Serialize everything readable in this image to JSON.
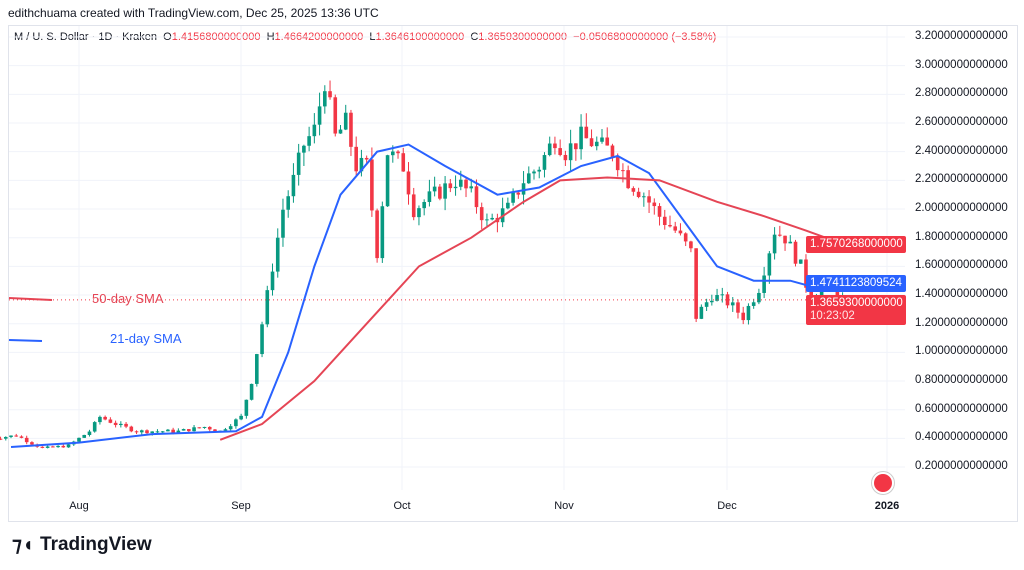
{
  "header": {
    "credit": "edithchuama created with TradingView.com, Dec 25, 2025 13:36 UTC"
  },
  "symbol": {
    "name": "M / U. S. Dollar · 1D · Kraken",
    "o_label": "O",
    "o": "1.4156800000000",
    "h_label": "H",
    "h": "1.4664200000000",
    "l_label": "L",
    "l": "1.3646100000000",
    "c_label": "C",
    "c": "1.3659300000000",
    "change": "−0.0506800000000 (−3.58%)"
  },
  "legend": {
    "sma50": "50-day SMA",
    "sma21": "21-day SMA"
  },
  "price_axis": [
    "3.2000000000000",
    "3.0000000000000",
    "2.8000000000000",
    "2.6000000000000",
    "2.4000000000000",
    "2.2000000000000",
    "2.0000000000000",
    "1.8000000000000",
    "1.6000000000000",
    "1.4000000000000",
    "1.2000000000000",
    "1.0000000000000",
    "0.8000000000000",
    "0.6000000000000",
    "0.4000000000000",
    "0.2000000000000"
  ],
  "tags": {
    "sma50": "1.7570268000000",
    "sma21": "1.4741123809524",
    "last": "1.3659300000000",
    "countdown": "10:23:02"
  },
  "time_axis": [
    "Aug",
    "Sep",
    "Oct",
    "Nov",
    "Dec",
    "2026"
  ],
  "brand": "TradingView",
  "colors": {
    "up": "#089981",
    "down": "#f23645",
    "sma21": "#2962ff",
    "sma50": "#e54555"
  },
  "chart_data": {
    "type": "candlestick",
    "ylim": [
      0.2,
      3.2
    ],
    "x_range": [
      "2025-07-15",
      "2026-01-05"
    ],
    "close_keypoints": [
      [
        "2025-07-15",
        0.4
      ],
      [
        "2025-07-20",
        0.42
      ],
      [
        "2025-07-25",
        0.33
      ],
      [
        "2025-07-30",
        0.35
      ],
      [
        "2025-08-03",
        0.45
      ],
      [
        "2025-08-05",
        0.55
      ],
      [
        "2025-08-08",
        0.5
      ],
      [
        "2025-08-12",
        0.45
      ],
      [
        "2025-08-20",
        0.45
      ],
      [
        "2025-08-25",
        0.48
      ],
      [
        "2025-08-28",
        0.45
      ],
      [
        "2025-09-01",
        0.55
      ],
      [
        "2025-09-03",
        0.8
      ],
      [
        "2025-09-05",
        1.2
      ],
      [
        "2025-09-07",
        1.6
      ],
      [
        "2025-09-09",
        2.0
      ],
      [
        "2025-09-11",
        2.2
      ],
      [
        "2025-09-13",
        2.45
      ],
      [
        "2025-09-15",
        2.55
      ],
      [
        "2025-09-17",
        2.9
      ],
      [
        "2025-09-19",
        2.5
      ],
      [
        "2025-09-21",
        2.6
      ],
      [
        "2025-09-23",
        2.3
      ],
      [
        "2025-09-25",
        2.3
      ],
      [
        "2025-09-27",
        1.7
      ],
      [
        "2025-09-29",
        2.4
      ],
      [
        "2025-10-02",
        2.3
      ],
      [
        "2025-10-04",
        2.0
      ],
      [
        "2025-10-08",
        2.1
      ],
      [
        "2025-10-12",
        2.2
      ],
      [
        "2025-10-15",
        2.1
      ],
      [
        "2025-10-18",
        1.9
      ],
      [
        "2025-10-22",
        2.0
      ],
      [
        "2025-10-25",
        2.2
      ],
      [
        "2025-10-28",
        2.3
      ],
      [
        "2025-10-31",
        2.5
      ],
      [
        "2025-11-02",
        2.4
      ],
      [
        "2025-11-05",
        2.5
      ],
      [
        "2025-11-08",
        2.45
      ],
      [
        "2025-11-11",
        2.4
      ],
      [
        "2025-11-14",
        2.2
      ],
      [
        "2025-11-17",
        2.1
      ],
      [
        "2025-11-20",
        1.95
      ],
      [
        "2025-11-23",
        1.85
      ],
      [
        "2025-11-26",
        1.7
      ],
      [
        "2025-11-27",
        1.25
      ],
      [
        "2025-11-30",
        1.4
      ],
      [
        "2025-12-03",
        1.35
      ],
      [
        "2025-12-06",
        1.25
      ],
      [
        "2025-12-09",
        1.45
      ],
      [
        "2025-12-12",
        1.85
      ],
      [
        "2025-12-14",
        1.8
      ],
      [
        "2025-12-17",
        1.6
      ],
      [
        "2025-12-19",
        1.35
      ],
      [
        "2025-12-21",
        1.48
      ],
      [
        "2025-12-25",
        1.366
      ]
    ],
    "sma21": [
      [
        "2025-07-19",
        0.34
      ],
      [
        "2025-08-01",
        0.37
      ],
      [
        "2025-08-15",
        0.43
      ],
      [
        "2025-08-31",
        0.45
      ],
      [
        "2025-09-05",
        0.55
      ],
      [
        "2025-09-10",
        1.0
      ],
      [
        "2025-09-15",
        1.6
      ],
      [
        "2025-09-20",
        2.1
      ],
      [
        "2025-09-27",
        2.4
      ],
      [
        "2025-10-03",
        2.45
      ],
      [
        "2025-10-10",
        2.3
      ],
      [
        "2025-10-20",
        2.1
      ],
      [
        "2025-10-28",
        2.15
      ],
      [
        "2025-11-05",
        2.3
      ],
      [
        "2025-11-12",
        2.37
      ],
      [
        "2025-11-18",
        2.25
      ],
      [
        "2025-11-25",
        1.9
      ],
      [
        "2025-12-01",
        1.6
      ],
      [
        "2025-12-08",
        1.5
      ],
      [
        "2025-12-15",
        1.5
      ],
      [
        "2025-12-20",
        1.45
      ],
      [
        "2025-12-25",
        1.474
      ]
    ],
    "sma50": [
      [
        "2025-08-28",
        0.39
      ],
      [
        "2025-09-05",
        0.5
      ],
      [
        "2025-09-15",
        0.8
      ],
      [
        "2025-09-25",
        1.2
      ],
      [
        "2025-10-05",
        1.6
      ],
      [
        "2025-10-15",
        1.8
      ],
      [
        "2025-10-25",
        2.05
      ],
      [
        "2025-11-01",
        2.2
      ],
      [
        "2025-11-10",
        2.22
      ],
      [
        "2025-11-20",
        2.2
      ],
      [
        "2025-12-01",
        2.05
      ],
      [
        "2025-12-10",
        1.95
      ],
      [
        "2025-12-18",
        1.85
      ],
      [
        "2025-12-25",
        1.757
      ]
    ]
  }
}
